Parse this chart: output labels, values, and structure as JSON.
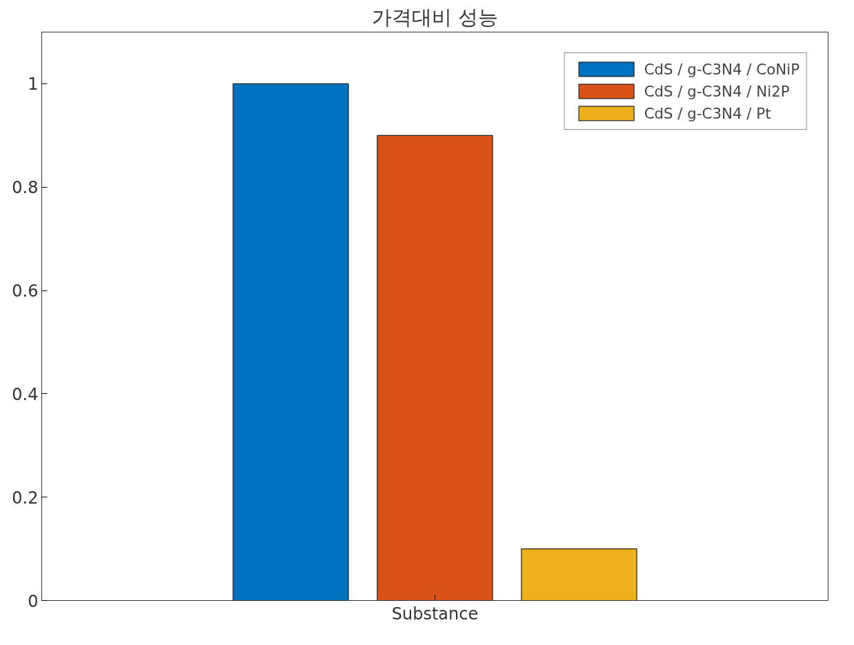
{
  "chart_data": {
    "type": "bar",
    "title": "가격대비 성능",
    "categories": [
      "Substance"
    ],
    "series": [
      {
        "name": "CdS / g-C3N4 / CoNiP",
        "color": "#0072bd",
        "values": [
          1
        ]
      },
      {
        "name": "CdS / g-C3N4 / Ni2P",
        "color": "#d95319",
        "values": [
          0.9
        ]
      },
      {
        "name": "CdS / g-C3N4 / Pt",
        "color": "#edb120",
        "values": [
          0.1
        ]
      }
    ],
    "ylim": [
      0,
      1.1
    ],
    "yticks": [
      0,
      0.2,
      0.4,
      0.6,
      0.8,
      1
    ],
    "legend": "top right",
    "grid": false
  }
}
